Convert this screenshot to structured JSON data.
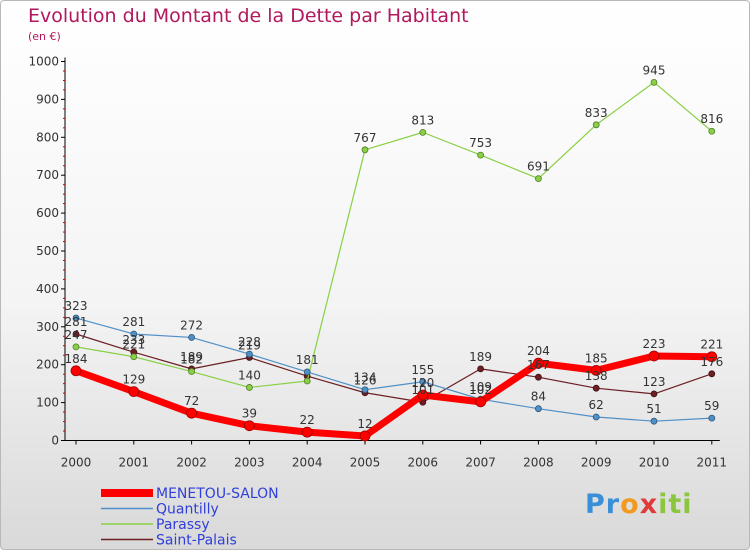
{
  "title": "Evolution du Montant de la Dette par Habitant",
  "unit": "(en €)",
  "brand": {
    "letters": [
      "P",
      "r",
      "o",
      "x",
      "i",
      "t",
      "i"
    ],
    "colors": [
      "#3a8fd8",
      "#3a8fd8",
      "#f29a1f",
      "#e23a3a",
      "#8cc63f",
      "#8cc63f",
      "#8cc63f"
    ]
  },
  "chart_data": {
    "type": "line",
    "title": "Evolution du Montant de la Dette par Habitant",
    "xlabel": "",
    "ylabel": "(en €)",
    "ylim": [
      0,
      1000
    ],
    "yticks": [
      0,
      100,
      200,
      300,
      400,
      500,
      600,
      700,
      800,
      900,
      1000
    ],
    "grid": false,
    "legend_position": "bottom-left",
    "categories": [
      "2000",
      "2001",
      "2002",
      "2003",
      "2004",
      "2005",
      "2006",
      "2007",
      "2008",
      "2009",
      "2010",
      "2011"
    ],
    "series": [
      {
        "name": "Saint-Palais",
        "color": "#6b1f23",
        "values": [
          281,
          233,
          189,
          219,
          170,
          126,
          101,
          189,
          167,
          138,
          123,
          176
        ],
        "labels": [
          "281",
          "233",
          "189",
          "219",
          "",
          "126",
          "101",
          "189",
          "167",
          "138",
          "123",
          "176"
        ]
      },
      {
        "name": "Parassy",
        "color": "#88d045",
        "values": [
          247,
          221,
          182,
          140,
          157,
          767,
          813,
          753,
          691,
          833,
          945,
          816
        ],
        "labels": [
          "247",
          "221",
          "182",
          "140",
          "",
          "767",
          "813",
          "753",
          "691",
          "833",
          "945",
          "816"
        ]
      },
      {
        "name": "Quantilly",
        "color": "#4f90c8",
        "values": [
          323,
          281,
          272,
          228,
          181,
          134,
          155,
          109,
          84,
          62,
          51,
          59
        ],
        "labels": [
          "323",
          "281",
          "272",
          "228",
          "181",
          "134",
          "155",
          "109",
          "84",
          "62",
          "51",
          "59"
        ]
      },
      {
        "name": "MENETOU-SALON",
        "color": "#ff0000",
        "values": [
          184,
          129,
          72,
          39,
          22,
          12,
          120,
          102,
          204,
          185,
          223,
          221
        ],
        "labels": [
          "184",
          "129",
          "72",
          "39",
          "22",
          "12",
          "120",
          "102",
          "204",
          "185",
          "223",
          "221"
        ]
      }
    ],
    "legend": [
      "MENETOU-SALON",
      "Quantilly",
      "Parassy",
      "Saint-Palais"
    ]
  }
}
